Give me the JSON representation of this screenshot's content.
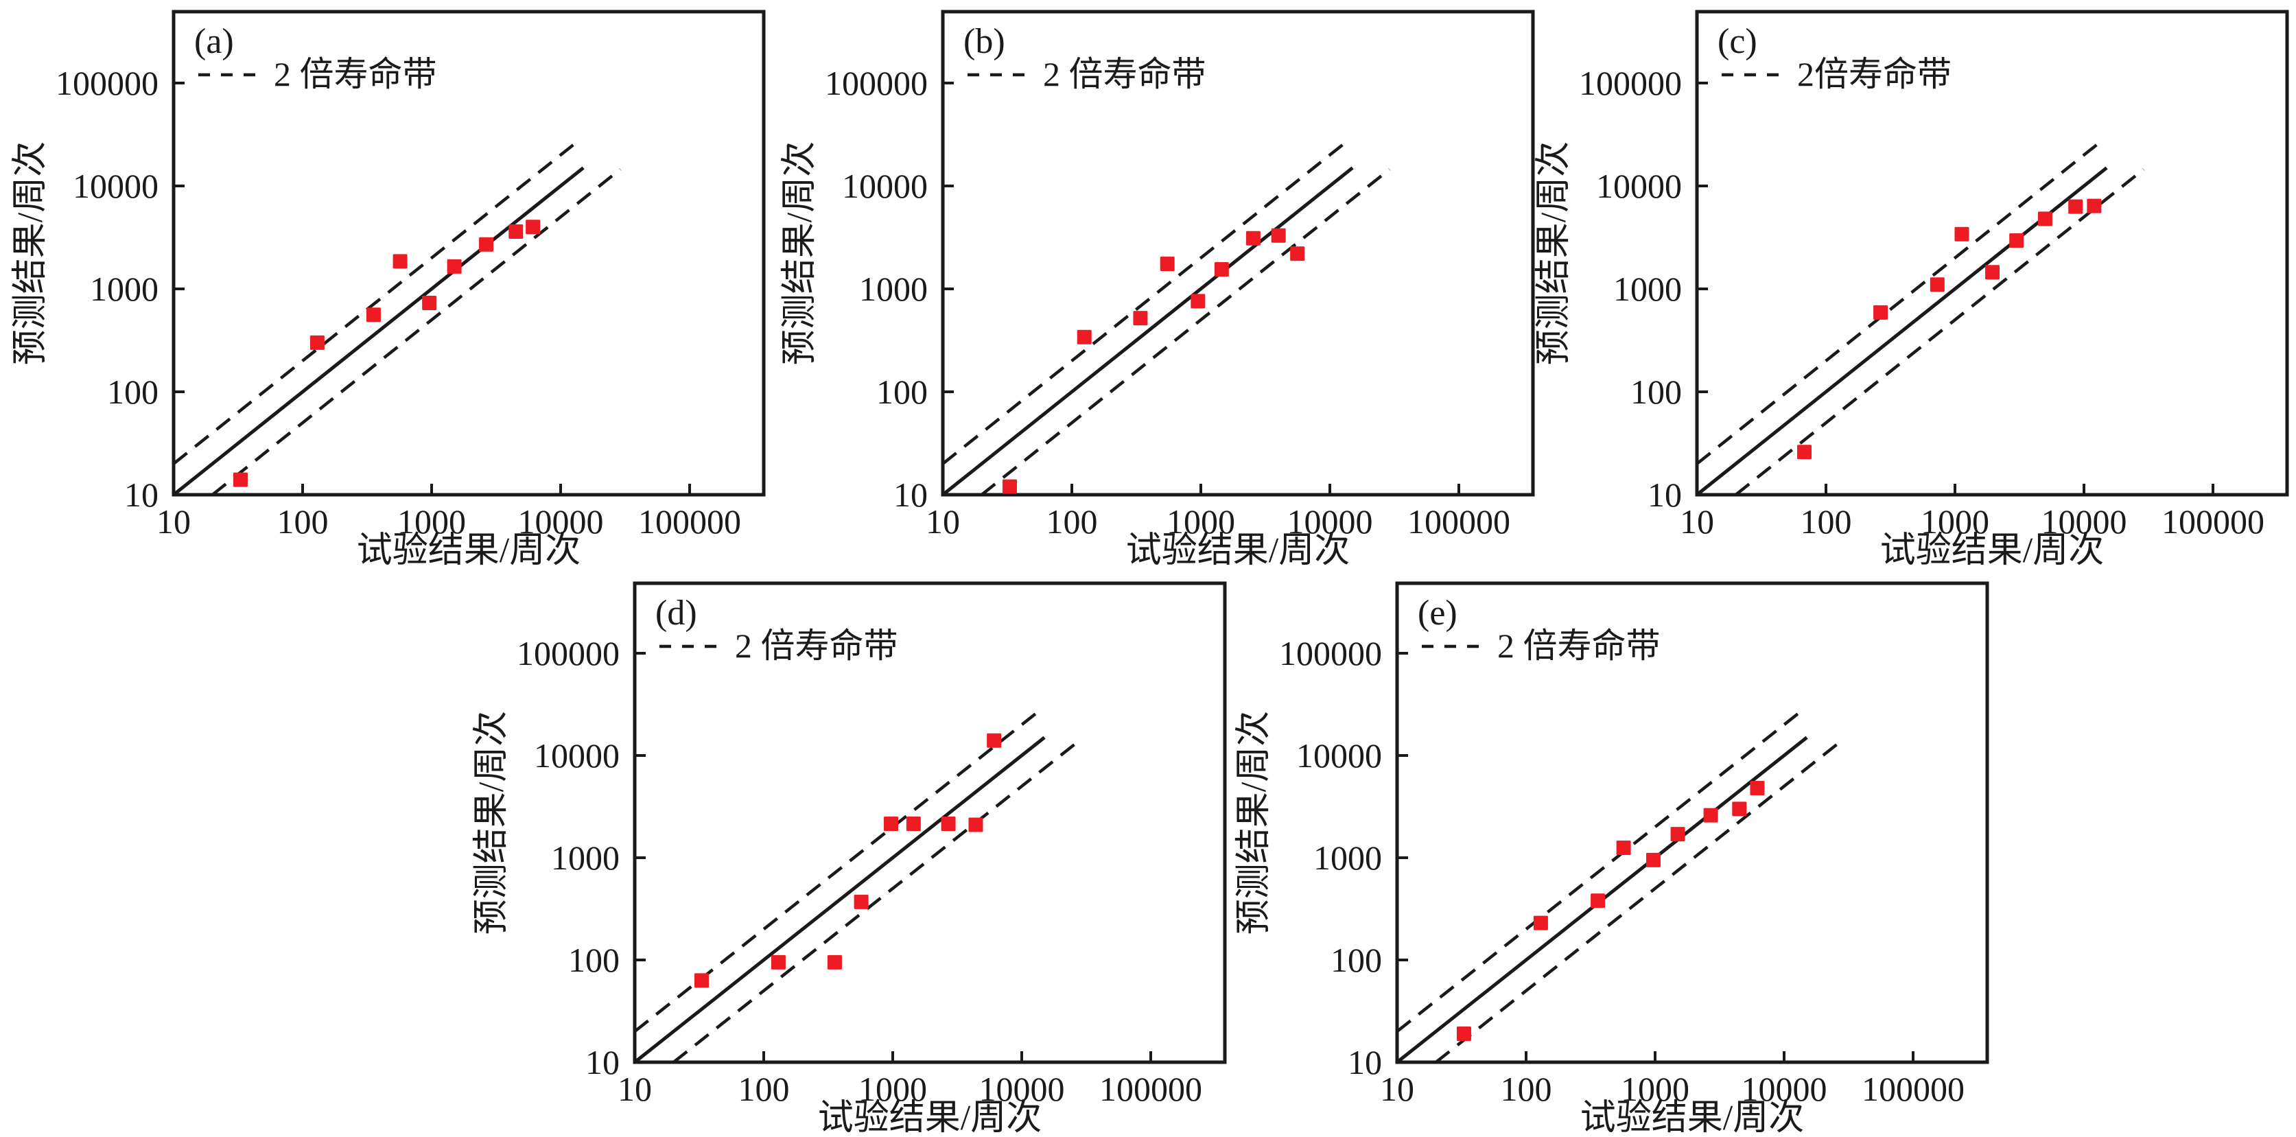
{
  "figure": {
    "background": "#ffffff",
    "axis_color": "#1a1a1a",
    "marker_color": "#ed1c24",
    "marker_shape": "square",
    "xlabel": "试验结果/周次",
    "ylabel": "预测结果/周次",
    "tick_labels": [
      "10",
      "100",
      "1000",
      "10000",
      "100000"
    ]
  },
  "chart_data": [
    {
      "type": "scatter",
      "panel": "(a)",
      "legend": "2 倍寿命带",
      "xlabel": "试验结果/周次",
      "ylabel": "预测结果/周次",
      "xscale": "log",
      "yscale": "log",
      "xlim": [
        10,
        300000
      ],
      "ylim": [
        10,
        500000
      ],
      "x_ticks": [
        10,
        100,
        1000,
        10000,
        100000
      ],
      "y_ticks": [
        10,
        100,
        1000,
        10000,
        100000
      ],
      "grid": false,
      "legend_position": "top-left",
      "reference_lines": [
        {
          "label": "y=x",
          "style": "solid",
          "from": [
            10,
            10
          ],
          "to": [
            15000,
            15000
          ]
        },
        {
          "label": "y=2x",
          "style": "dashed",
          "from": [
            10,
            20
          ],
          "to": [
            14000,
            28000
          ]
        },
        {
          "label": "y=x/2",
          "style": "dashed",
          "from": [
            20,
            10
          ],
          "to": [
            29000,
            14500
          ]
        }
      ],
      "points": [
        [
          33,
          14
        ],
        [
          130,
          300
        ],
        [
          355,
          560
        ],
        [
          570,
          1850
        ],
        [
          960,
          730
        ],
        [
          1500,
          1650
        ],
        [
          2650,
          2700
        ],
        [
          4500,
          3600
        ],
        [
          6100,
          4000
        ]
      ]
    },
    {
      "type": "scatter",
      "panel": "(b)",
      "legend": "2 倍寿命带",
      "xlabel": "试验结果/周次",
      "ylabel": "预测结果/周次",
      "xscale": "log",
      "yscale": "log",
      "xlim": [
        10,
        300000
      ],
      "ylim": [
        10,
        500000
      ],
      "x_ticks": [
        10,
        100,
        1000,
        10000,
        100000
      ],
      "y_ticks": [
        10,
        100,
        1000,
        10000,
        100000
      ],
      "grid": false,
      "legend_position": "top-left",
      "reference_lines": [
        {
          "label": "y=x",
          "style": "solid",
          "from": [
            10,
            10
          ],
          "to": [
            15000,
            15000
          ]
        },
        {
          "label": "y=2x",
          "style": "dashed",
          "from": [
            10,
            20
          ],
          "to": [
            14000,
            28000
          ]
        },
        {
          "label": "y=x/2",
          "style": "dashed",
          "from": [
            20,
            10
          ],
          "to": [
            29000,
            14500
          ]
        }
      ],
      "points": [
        [
          33,
          12
        ],
        [
          125,
          340
        ],
        [
          340,
          520
        ],
        [
          550,
          1750
        ],
        [
          950,
          760
        ],
        [
          1450,
          1550
        ],
        [
          2550,
          3100
        ],
        [
          4000,
          3300
        ],
        [
          5600,
          2200
        ]
      ]
    },
    {
      "type": "scatter",
      "panel": "(c)",
      "legend": "2倍寿命带",
      "xlabel": "试验结果/周次",
      "ylabel": "预测结果/周次",
      "xscale": "log",
      "yscale": "log",
      "xlim": [
        10,
        300000
      ],
      "ylim": [
        10,
        500000
      ],
      "x_ticks": [
        10,
        100,
        1000,
        10000,
        100000
      ],
      "y_ticks": [
        10,
        100,
        1000,
        10000,
        100000
      ],
      "grid": false,
      "legend_position": "top-left",
      "reference_lines": [
        {
          "label": "y=x",
          "style": "solid",
          "from": [
            10,
            10
          ],
          "to": [
            15000,
            15000
          ]
        },
        {
          "label": "y=2x",
          "style": "dashed",
          "from": [
            10,
            20
          ],
          "to": [
            14000,
            28000
          ]
        },
        {
          "label": "y=x/2",
          "style": "dashed",
          "from": [
            20,
            10
          ],
          "to": [
            29000,
            14500
          ]
        }
      ],
      "points": [
        [
          68,
          26
        ],
        [
          265,
          590
        ],
        [
          730,
          1100
        ],
        [
          1130,
          3400
        ],
        [
          1950,
          1450
        ],
        [
          3000,
          2950
        ],
        [
          5000,
          4800
        ],
        [
          8600,
          6300
        ],
        [
          12000,
          6400
        ]
      ]
    },
    {
      "type": "scatter",
      "panel": "(d)",
      "legend": "2 倍寿命带",
      "xlabel": "试验结果/周次",
      "ylabel": "预测结果/周次",
      "xscale": "log",
      "yscale": "log",
      "xlim": [
        10,
        300000
      ],
      "ylim": [
        10,
        500000
      ],
      "x_ticks": [
        10,
        100,
        1000,
        10000,
        100000
      ],
      "y_ticks": [
        10,
        100,
        1000,
        10000,
        100000
      ],
      "grid": false,
      "legend_position": "top-left",
      "reference_lines": [
        {
          "label": "y=x",
          "style": "solid",
          "from": [
            10,
            10
          ],
          "to": [
            15000,
            15000
          ]
        },
        {
          "label": "y=2x",
          "style": "dashed",
          "from": [
            10,
            20
          ],
          "to": [
            14000,
            28000
          ]
        },
        {
          "label": "y=x/2",
          "style": "dashed",
          "from": [
            20,
            10
          ],
          "to": [
            29000,
            14500
          ]
        }
      ],
      "points": [
        [
          33,
          63
        ],
        [
          130,
          95
        ],
        [
          355,
          95
        ],
        [
          570,
          370
        ],
        [
          970,
          2150
        ],
        [
          1450,
          2150
        ],
        [
          2700,
          2150
        ],
        [
          4400,
          2100
        ],
        [
          6100,
          14000
        ]
      ]
    },
    {
      "type": "scatter",
      "panel": "(e)",
      "legend": "2 倍寿命带",
      "xlabel": "试验结果/周次",
      "ylabel": "预测结果/周次",
      "xscale": "log",
      "yscale": "log",
      "xlim": [
        10,
        300000
      ],
      "ylim": [
        10,
        500000
      ],
      "x_ticks": [
        10,
        100,
        1000,
        10000,
        100000
      ],
      "y_ticks": [
        10,
        100,
        1000,
        10000,
        100000
      ],
      "grid": false,
      "legend_position": "top-left",
      "reference_lines": [
        {
          "label": "y=x",
          "style": "solid",
          "from": [
            10,
            10
          ],
          "to": [
            15000,
            15000
          ]
        },
        {
          "label": "y=2x",
          "style": "dashed",
          "from": [
            10,
            20
          ],
          "to": [
            14000,
            28000
          ]
        },
        {
          "label": "y=x/2",
          "style": "dashed",
          "from": [
            20,
            10
          ],
          "to": [
            29000,
            14500
          ]
        }
      ],
      "points": [
        [
          33,
          19
        ],
        [
          130,
          230
        ],
        [
          360,
          380
        ],
        [
          570,
          1250
        ],
        [
          970,
          950
        ],
        [
          1500,
          1700
        ],
        [
          2700,
          2600
        ],
        [
          4500,
          3000
        ],
        [
          6200,
          4800
        ]
      ]
    }
  ]
}
